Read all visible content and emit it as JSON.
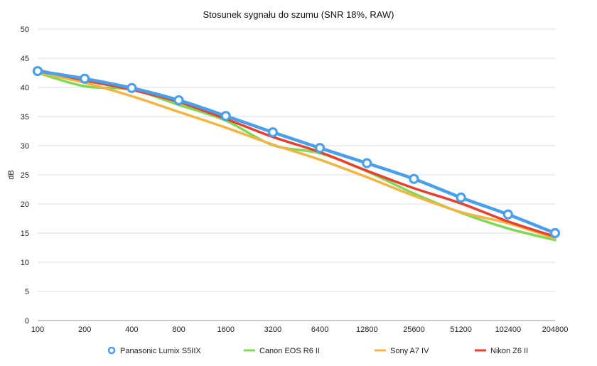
{
  "chart_data": {
    "type": "line",
    "title": "Stosunek sygnału do szumu (SNR 18%, RAW)",
    "xlabel": "",
    "ylabel": "dB",
    "ylim": [
      0,
      50
    ],
    "yticks": [
      0,
      5,
      10,
      15,
      20,
      25,
      30,
      35,
      40,
      45,
      50
    ],
    "grid": true,
    "legend_position": "bottom",
    "categories": [
      "100",
      "200",
      "400",
      "800",
      "1600",
      "3200",
      "6400",
      "12800",
      "25600",
      "51200",
      "102400",
      "204800"
    ],
    "series": [
      {
        "name": "Panasonic Lumix S5IIX",
        "color": "#4A9FEA",
        "markers": true,
        "values": [
          42.8,
          41.5,
          39.9,
          37.8,
          35.1,
          32.3,
          29.6,
          27.0,
          24.3,
          21.1,
          18.2,
          15.0
        ]
      },
      {
        "name": "Canon EOS R6 II",
        "color": "#7ED957",
        "markers": false,
        "values": [
          42.5,
          40.2,
          39.6,
          37.0,
          34.3,
          30.1,
          28.7,
          25.6,
          21.8,
          18.5,
          15.8,
          13.8
        ]
      },
      {
        "name": "Sony A7 IV",
        "color": "#F2B544",
        "markers": false,
        "values": [
          42.6,
          40.8,
          38.5,
          35.8,
          33.1,
          30.2,
          27.6,
          24.6,
          21.4,
          18.6,
          16.7,
          14.1
        ]
      },
      {
        "name": "Nikon Z6 II",
        "color": "#E8402F",
        "markers": false,
        "values": [
          43.0,
          41.2,
          39.6,
          37.5,
          34.6,
          31.5,
          28.9,
          25.7,
          22.7,
          20.1,
          17.0,
          14.4
        ]
      }
    ]
  }
}
